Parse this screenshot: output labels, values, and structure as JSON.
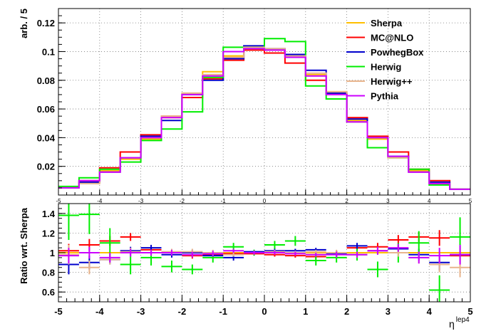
{
  "chart_data": [
    {
      "type": "line",
      "step": true,
      "ylabel": "arb. / 5",
      "xlim": [
        -5,
        5
      ],
      "ylim": [
        0,
        0.13
      ],
      "yticks": [
        0.02,
        0.04,
        0.06,
        0.08,
        0.1,
        0.12
      ],
      "ytick_labels": [
        "0.02",
        "0.04",
        "0.06",
        "0.08",
        "0.1",
        "0.12"
      ],
      "xticks": [
        -5,
        -4,
        -3,
        -2,
        -1,
        0,
        1,
        2,
        3,
        4,
        5
      ],
      "xtick_labels": [
        "-5",
        "-4",
        "-3",
        "-2",
        "-1",
        "0",
        "1",
        "2",
        "3",
        "4",
        "5"
      ],
      "legend_position": "top-right",
      "series": [
        {
          "name": "Sherpa",
          "color": "#ffbf00",
          "values": [
            0.005,
            0.009,
            0.017,
            0.025,
            0.039,
            0.054,
            0.071,
            0.086,
            0.097,
            0.103,
            0.101,
            0.096,
            0.084,
            0.072,
            0.052,
            0.039,
            0.026,
            0.017,
            0.009,
            0.004
          ]
        },
        {
          "name": "MC@NLO",
          "color": "#ff0000",
          "values": [
            0.005,
            0.01,
            0.019,
            0.03,
            0.042,
            0.055,
            0.068,
            0.081,
            0.094,
            0.101,
            0.099,
            0.092,
            0.08,
            0.071,
            0.054,
            0.041,
            0.03,
            0.018,
            0.01,
            0.004
          ]
        },
        {
          "name": "PowhegBox",
          "color": "#0000cc",
          "values": [
            0.005,
            0.009,
            0.016,
            0.026,
            0.041,
            0.052,
            0.07,
            0.08,
            0.095,
            0.104,
            0.102,
            0.098,
            0.087,
            0.071,
            0.053,
            0.04,
            0.027,
            0.016,
            0.009,
            0.004
          ]
        },
        {
          "name": "Herwig",
          "color": "#00ee00",
          "values": [
            0.006,
            0.012,
            0.018,
            0.023,
            0.038,
            0.046,
            0.058,
            0.082,
            0.103,
            0.103,
            0.109,
            0.107,
            0.076,
            0.067,
            0.051,
            0.033,
            0.026,
            0.018,
            0.007,
            0.004
          ]
        },
        {
          "name": "Herwig++",
          "color": "#e8b48c",
          "values": [
            0.005,
            0.008,
            0.016,
            0.026,
            0.04,
            0.055,
            0.071,
            0.084,
            0.096,
            0.103,
            0.102,
            0.097,
            0.085,
            0.072,
            0.051,
            0.04,
            0.026,
            0.016,
            0.008,
            0.004
          ]
        },
        {
          "name": "Pythia",
          "color": "#cc00ff",
          "values": [
            0.005,
            0.01,
            0.016,
            0.026,
            0.04,
            0.054,
            0.07,
            0.083,
            0.1,
            0.102,
            0.101,
            0.096,
            0.083,
            0.07,
            0.051,
            0.04,
            0.027,
            0.016,
            0.008,
            0.004
          ]
        }
      ]
    },
    {
      "type": "line",
      "step": true,
      "ylabel": "Ratio wrt. Sherpa",
      "xlabel": "η",
      "xlabel_sup": "lep4",
      "xlim": [
        -5,
        5
      ],
      "ylim": [
        0.5,
        1.5
      ],
      "yticks": [
        0.6,
        0.8,
        1.0,
        1.2,
        1.4
      ],
      "ytick_labels": [
        "0.6",
        "0.8",
        "1",
        "1.2",
        "1.4"
      ],
      "xticks": [
        -5,
        -4,
        -3,
        -2,
        -1,
        0,
        1,
        2,
        3,
        4,
        5
      ],
      "xtick_labels": [
        "-5",
        "-4",
        "-3",
        "-2",
        "-1",
        "0",
        "1",
        "2",
        "3",
        "4",
        "5"
      ],
      "series": [
        {
          "name": "Sherpa",
          "color": "#ffbf00",
          "values": [
            1,
            1,
            1,
            1,
            1,
            1,
            1,
            1,
            1,
            1,
            1,
            1,
            1,
            1,
            1,
            1,
            1,
            1,
            1,
            1
          ],
          "errors": [
            0,
            0,
            0,
            0,
            0,
            0,
            0,
            0,
            0,
            0,
            0,
            0,
            0,
            0,
            0,
            0,
            0,
            0,
            0,
            0
          ]
        },
        {
          "name": "MC@NLO",
          "color": "#ff0000",
          "values": [
            1.02,
            1.08,
            1.12,
            1.16,
            1.03,
            1.0,
            0.97,
            0.98,
            0.99,
            0.99,
            0.98,
            0.97,
            0.96,
            0.99,
            1.05,
            1.06,
            1.13,
            1.16,
            1.15,
            0.97
          ],
          "errors": [
            0.07,
            0.06,
            0.05,
            0.04,
            0.03,
            0.03,
            0.03,
            0.03,
            0.02,
            0.02,
            0.02,
            0.02,
            0.02,
            0.03,
            0.03,
            0.04,
            0.05,
            0.05,
            0.08,
            0.1
          ]
        },
        {
          "name": "PowhegBox",
          "color": "#0000cc",
          "values": [
            0.88,
            0.9,
            0.93,
            1.02,
            1.05,
            0.98,
            1.0,
            0.97,
            0.95,
            1.01,
            1.02,
            1.02,
            1.03,
            0.99,
            1.07,
            1.02,
            1.04,
            0.98,
            0.9,
            0.98
          ],
          "errors": [
            0.1,
            0.07,
            0.05,
            0.04,
            0.03,
            0.03,
            0.03,
            0.03,
            0.03,
            0.02,
            0.02,
            0.02,
            0.02,
            0.03,
            0.03,
            0.04,
            0.04,
            0.06,
            0.08,
            0.1
          ]
        },
        {
          "name": "Herwig",
          "color": "#00ee00",
          "values": [
            1.38,
            1.39,
            1.1,
            0.88,
            0.95,
            0.86,
            0.83,
            0.95,
            1.06,
            1.0,
            1.08,
            1.12,
            0.92,
            0.95,
            0.98,
            0.83,
            1.0,
            1.1,
            0.62,
            1.16
          ],
          "errors": [
            0.25,
            0.2,
            0.15,
            0.1,
            0.08,
            0.06,
            0.05,
            0.05,
            0.04,
            0.03,
            0.04,
            0.05,
            0.05,
            0.05,
            0.06,
            0.08,
            0.1,
            0.12,
            0.15,
            0.2
          ]
        },
        {
          "name": "Herwig++",
          "color": "#e8b48c",
          "values": [
            0.98,
            0.85,
            0.93,
            1.01,
            1.0,
            1.01,
            1.01,
            1.0,
            0.98,
            1.0,
            1.01,
            1.0,
            1.01,
            1.0,
            0.98,
            1.02,
            1.0,
            0.95,
            0.88,
            0.85
          ],
          "errors": [
            0.1,
            0.07,
            0.05,
            0.04,
            0.03,
            0.03,
            0.03,
            0.03,
            0.02,
            0.02,
            0.02,
            0.02,
            0.02,
            0.03,
            0.03,
            0.04,
            0.04,
            0.06,
            0.08,
            0.1
          ]
        },
        {
          "name": "Pythia",
          "color": "#cc00ff",
          "values": [
            0.97,
            1.0,
            0.95,
            1.0,
            1.0,
            1.0,
            0.98,
            0.99,
            1.02,
            1.0,
            1.0,
            0.99,
            0.98,
            0.98,
            0.98,
            1.02,
            1.05,
            0.95,
            0.97,
            0.98
          ],
          "errors": [
            0.08,
            0.06,
            0.05,
            0.04,
            0.03,
            0.03,
            0.03,
            0.03,
            0.02,
            0.02,
            0.02,
            0.02,
            0.02,
            0.03,
            0.03,
            0.04,
            0.04,
            0.06,
            0.08,
            0.1
          ]
        }
      ]
    }
  ]
}
